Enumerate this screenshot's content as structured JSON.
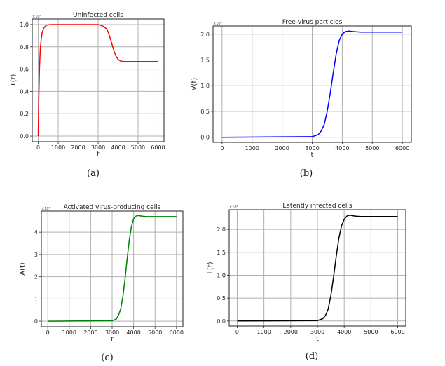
{
  "chart_data": [
    {
      "type": "line",
      "caption": "(a)",
      "title": "Uninfected cells",
      "xlabel": "t",
      "ylabel": "T(t)",
      "y_multiplier": "×10⁶",
      "xlim": [
        -300,
        6300
      ],
      "ylim": [
        -0.05,
        1.05
      ],
      "xticks": [
        0,
        1000,
        2000,
        3000,
        4000,
        5000,
        6000
      ],
      "yticks": [
        0.0,
        0.2,
        0.4,
        0.6,
        0.8,
        1.0
      ],
      "ytick_labels": [
        "0.0",
        "0.2",
        "0.4",
        "0.6",
        "0.8",
        "1.0"
      ],
      "grid": true,
      "color": "#ff0000",
      "x": [
        0,
        30,
        60,
        100,
        150,
        200,
        300,
        400,
        500,
        700,
        3000,
        3200,
        3400,
        3500,
        3600,
        3700,
        3800,
        3900,
        4000,
        4100,
        4200,
        4400,
        6000
      ],
      "y": [
        0,
        0.35,
        0.6,
        0.77,
        0.87,
        0.93,
        0.975,
        0.992,
        0.998,
        1.0,
        1.0,
        0.99,
        0.965,
        0.935,
        0.88,
        0.82,
        0.76,
        0.715,
        0.688,
        0.675,
        0.67,
        0.668,
        0.668
      ]
    },
    {
      "type": "line",
      "caption": "(b)",
      "title": "Free-virus particles",
      "xlabel": "t",
      "ylabel": "V(t)",
      "y_multiplier": "×10⁸",
      "xlim": [
        -300,
        6300
      ],
      "ylim": [
        -0.1,
        2.16
      ],
      "xticks": [
        0,
        1000,
        2000,
        3000,
        4000,
        5000,
        6000
      ],
      "yticks": [
        0.0,
        0.5,
        1.0,
        1.5,
        2.0
      ],
      "ytick_labels": [
        "0.0",
        "0.5",
        "1.0",
        "1.5",
        "2.0"
      ],
      "grid": true,
      "color": "#0000ff",
      "x": [
        0,
        3000,
        3200,
        3300,
        3400,
        3500,
        3600,
        3700,
        3800,
        3900,
        4000,
        4100,
        4200,
        4400,
        4600,
        6000
      ],
      "y": [
        0,
        0.01,
        0.05,
        0.12,
        0.25,
        0.5,
        0.85,
        1.25,
        1.62,
        1.88,
        2.0,
        2.05,
        2.06,
        2.05,
        2.04,
        2.04
      ]
    },
    {
      "type": "line",
      "caption": "(c)",
      "title": "Activated virus-producing cells",
      "xlabel": "t",
      "ylabel": "A(t)",
      "y_multiplier": "×10⁵",
      "xlim": [
        -300,
        6300
      ],
      "ylim": [
        -0.25,
        4.95
      ],
      "xticks": [
        0,
        1000,
        2000,
        3000,
        4000,
        5000,
        6000
      ],
      "yticks": [
        0,
        1,
        2,
        3,
        4
      ],
      "ytick_labels": [
        "0",
        "1",
        "2",
        "3",
        "4"
      ],
      "grid": true,
      "color": "#008000",
      "x": [
        0,
        3000,
        3200,
        3300,
        3400,
        3500,
        3600,
        3700,
        3800,
        3900,
        4000,
        4100,
        4200,
        4400,
        4600,
        6000
      ],
      "y": [
        0,
        0.02,
        0.1,
        0.28,
        0.55,
        1.1,
        1.9,
        2.8,
        3.65,
        4.25,
        4.6,
        4.72,
        4.75,
        4.72,
        4.7,
        4.7
      ]
    },
    {
      "type": "line",
      "caption": "(d)",
      "title": "Latently infected cells",
      "xlabel": "t",
      "ylabel": "L(t)",
      "y_multiplier": "×10³",
      "xlim": [
        -300,
        6300
      ],
      "ylim": [
        -0.11,
        2.43
      ],
      "xticks": [
        0,
        1000,
        2000,
        3000,
        4000,
        5000,
        6000
      ],
      "yticks": [
        0.0,
        0.5,
        1.0,
        1.5,
        2.0
      ],
      "ytick_labels": [
        "0.0",
        "0.5",
        "1.0",
        "1.5",
        "2.0"
      ],
      "grid": true,
      "color": "#000000",
      "x": [
        0,
        3000,
        3200,
        3300,
        3400,
        3500,
        3600,
        3700,
        3800,
        3900,
        4000,
        4100,
        4200,
        4400,
        4600,
        6000
      ],
      "y": [
        0,
        0.01,
        0.05,
        0.12,
        0.26,
        0.55,
        0.95,
        1.4,
        1.8,
        2.08,
        2.22,
        2.29,
        2.31,
        2.29,
        2.28,
        2.28
      ]
    }
  ]
}
